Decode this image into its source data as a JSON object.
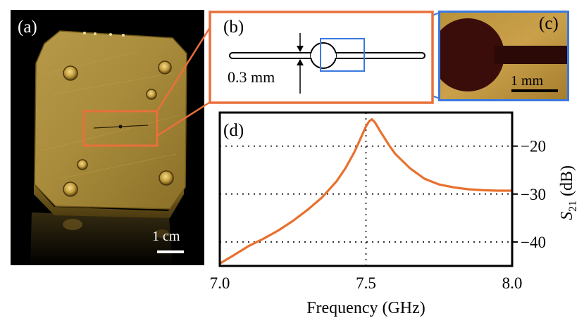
{
  "figure": {
    "panel_a": {
      "label": "(a)",
      "scale_bar": "1 cm"
    },
    "panel_b": {
      "label": "(b)",
      "dimension": "0.3 mm"
    },
    "panel_c": {
      "label": "(c)",
      "scale_bar": "1 mm"
    },
    "panel_d": {
      "label": "(d)"
    }
  },
  "colors": {
    "highlight_orange": "#e8703a",
    "highlight_blue": "#3a78e0",
    "curve": "#e8702e"
  },
  "chart_data": {
    "type": "line",
    "title": "",
    "xlabel": "Frequency (GHz)",
    "ylabel_main": "S",
    "ylabel_sub": "21",
    "ylabel_unit": " (dB)",
    "xlim": [
      7.0,
      8.0
    ],
    "ylim": [
      -45,
      -13
    ],
    "xticks": [
      7.0,
      7.5,
      8.0
    ],
    "xtick_labels": [
      "7.0",
      "7.5",
      "8.0"
    ],
    "yticks": [
      -20,
      -30,
      -40
    ],
    "ytick_labels": [
      "−20",
      "−30",
      "−40"
    ],
    "grid": "dotted",
    "vline_x": 7.5,
    "series": [
      {
        "name": "S21",
        "x": [
          7.0,
          7.05,
          7.1,
          7.15,
          7.2,
          7.25,
          7.3,
          7.35,
          7.4,
          7.43,
          7.46,
          7.48,
          7.5,
          7.51,
          7.52,
          7.53,
          7.55,
          7.58,
          7.6,
          7.65,
          7.7,
          7.75,
          7.8,
          7.85,
          7.9,
          7.95,
          8.0
        ],
        "y": [
          -44.5,
          -42.7,
          -40.8,
          -39.3,
          -37.6,
          -35.6,
          -33.3,
          -30.7,
          -27.3,
          -24.6,
          -21.3,
          -18.6,
          -15.9,
          -14.9,
          -14.4,
          -15.0,
          -17.0,
          -19.9,
          -21.6,
          -24.6,
          -26.8,
          -28.0,
          -28.6,
          -29.0,
          -29.2,
          -29.3,
          -29.3
        ]
      }
    ]
  }
}
